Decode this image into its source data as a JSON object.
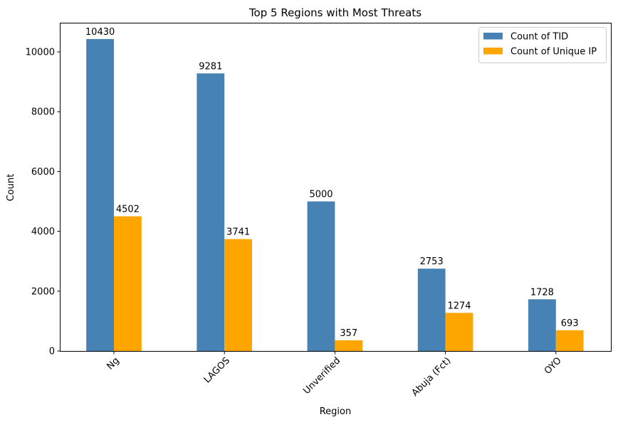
{
  "chart_data": {
    "type": "bar",
    "title": "Top 5 Regions with Most Threats",
    "xlabel": "Region",
    "ylabel": "Count",
    "categories": [
      "Ng",
      "LAGOS",
      "Unverified",
      "Abuja (Fct)",
      "OYO"
    ],
    "series": [
      {
        "name": "Count of TID",
        "values": [
          10430,
          9281,
          5000,
          2753,
          1728
        ],
        "color": "#4682B4"
      },
      {
        "name": "Count of Unique IP",
        "values": [
          4502,
          3741,
          357,
          1274,
          693
        ],
        "color": "#FFA500"
      }
    ],
    "ylim": [
      0,
      10951
    ],
    "yticks": [
      0,
      2000,
      4000,
      6000,
      8000,
      10000
    ],
    "xtick_rotation": 45,
    "legend_position": "top-right",
    "grid": false,
    "data_labels": true
  }
}
